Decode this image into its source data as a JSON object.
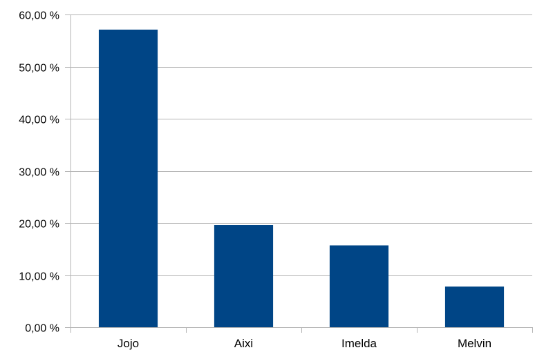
{
  "chart_data": {
    "type": "bar",
    "categories": [
      "Jojo",
      "Aixi",
      "Imelda",
      "Melvin"
    ],
    "values": [
      57.1,
      19.6,
      15.7,
      7.8
    ],
    "title": "",
    "xlabel": "",
    "ylabel": "",
    "ylim": [
      0,
      60
    ],
    "yticks": [
      0,
      10,
      20,
      30,
      40,
      50,
      60
    ],
    "ytick_labels": [
      "0,00 %",
      "10,00 %",
      "20,00 %",
      "30,00 %",
      "40,00 %",
      "50,00 %",
      "60,00 %"
    ],
    "grid": true,
    "legend": "none",
    "bar_color": "#004586"
  }
}
